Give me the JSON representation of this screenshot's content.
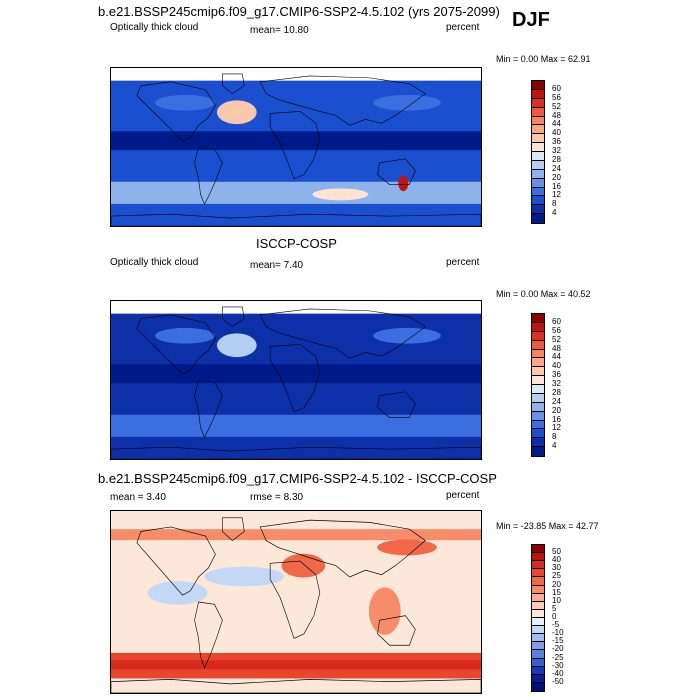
{
  "season": "DJF",
  "panels": [
    {
      "title": "b.e21.BSSP245cmip6.f09_g17.CMIP6-SSP2-4.5.102 (yrs 2075-2099)",
      "left_label": "Optically thick cloud",
      "center_label": "mean=  10.80",
      "right_label": "percent",
      "minmax": "Min =   0.00 Max =   62.91",
      "colorbar": {
        "labels": [
          "60",
          "56",
          "52",
          "48",
          "44",
          "40",
          "36",
          "32",
          "28",
          "24",
          "20",
          "16",
          "12",
          "8",
          "4"
        ],
        "colors": [
          "#8b0000",
          "#c0140e",
          "#dc2f1e",
          "#ef5a3a",
          "#f6845e",
          "#f9a783",
          "#fcc8ac",
          "#fde3d2",
          "#dbe8f6",
          "#b5cdf0",
          "#8eb2ea",
          "#6592e6",
          "#3b6fdf",
          "#1a4fd0",
          "#0d30a8",
          "#001a8a"
        ]
      },
      "field": "model"
    },
    {
      "title": "ISCCP-COSP",
      "left_label": "Optically thick cloud",
      "center_label": "mean=   7.40",
      "right_label": "percent",
      "minmax": "Min =   0.00 Max =   40.52",
      "colorbar": {
        "labels": [
          "60",
          "56",
          "52",
          "48",
          "44",
          "40",
          "36",
          "32",
          "28",
          "24",
          "20",
          "16",
          "12",
          "8",
          "4"
        ],
        "colors": [
          "#8b0000",
          "#c0140e",
          "#dc2f1e",
          "#ef5a3a",
          "#f6845e",
          "#f9a783",
          "#fcc8ac",
          "#fde3d2",
          "#dbe8f6",
          "#b5cdf0",
          "#8eb2ea",
          "#6592e6",
          "#3b6fdf",
          "#1a4fd0",
          "#0d30a8",
          "#001a8a"
        ]
      },
      "field": "obs"
    },
    {
      "title": "b.e21.BSSP245cmip6.f09_g17.CMIP6-SSP2-4.5.102 - ISCCP-COSP",
      "left_label": "mean =   3.40",
      "center_label": "rmse =   8.30",
      "right_label": "percent",
      "minmax": "Min = -23.85 Max =  42.77",
      "colorbar": {
        "labels": [
          "50",
          "40",
          "30",
          "25",
          "20",
          "15",
          "10",
          "5",
          "0",
          "-5",
          "-10",
          "-15",
          "-20",
          "-25",
          "-30",
          "-40",
          "-50"
        ],
        "colors": [
          "#8b0000",
          "#b8120c",
          "#d62a1c",
          "#e8472e",
          "#f06848",
          "#f68c6a",
          "#f9ad8e",
          "#fcccb4",
          "#fde7d9",
          "#e3eefb",
          "#c4d7f4",
          "#a2bdee",
          "#7fa1e6",
          "#5a82dc",
          "#3660d0",
          "#1838b4",
          "#0a1d93",
          "#00127a"
        ]
      },
      "field": "diff"
    }
  ]
}
